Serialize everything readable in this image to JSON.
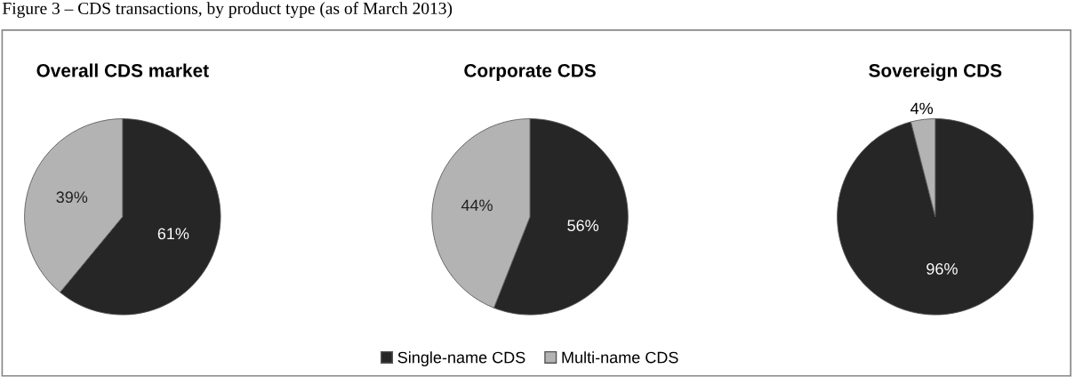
{
  "chart_data": [
    {
      "type": "other",
      "title": "Figure 3 – CDS transactions, by product type (as of March 2013)"
    },
    {
      "type": "pie",
      "title": "Overall CDS market",
      "categories": [
        "Single-name CDS",
        "Multi-name CDS"
      ],
      "values": [
        61,
        39
      ],
      "colors": [
        "#262626",
        "#b3b3b3"
      ],
      "value_labels": [
        "61%",
        "39%"
      ],
      "legend": "bottom"
    },
    {
      "type": "pie",
      "title": "Corporate CDS",
      "categories": [
        null,
        null
      ],
      "values": [
        56,
        44
      ],
      "colors": [
        "#262626",
        "#b3b3b3"
      ],
      "value_labels": [
        "56%",
        "44%"
      ]
    },
    {
      "type": "pie",
      "title": "Sovereign CDS",
      "categories": [
        null,
        null
      ],
      "values": [
        96,
        4
      ],
      "colors": [
        "#262626",
        "#b3b3b3"
      ],
      "value_labels": [
        "96%",
        "4%"
      ]
    }
  ]
}
